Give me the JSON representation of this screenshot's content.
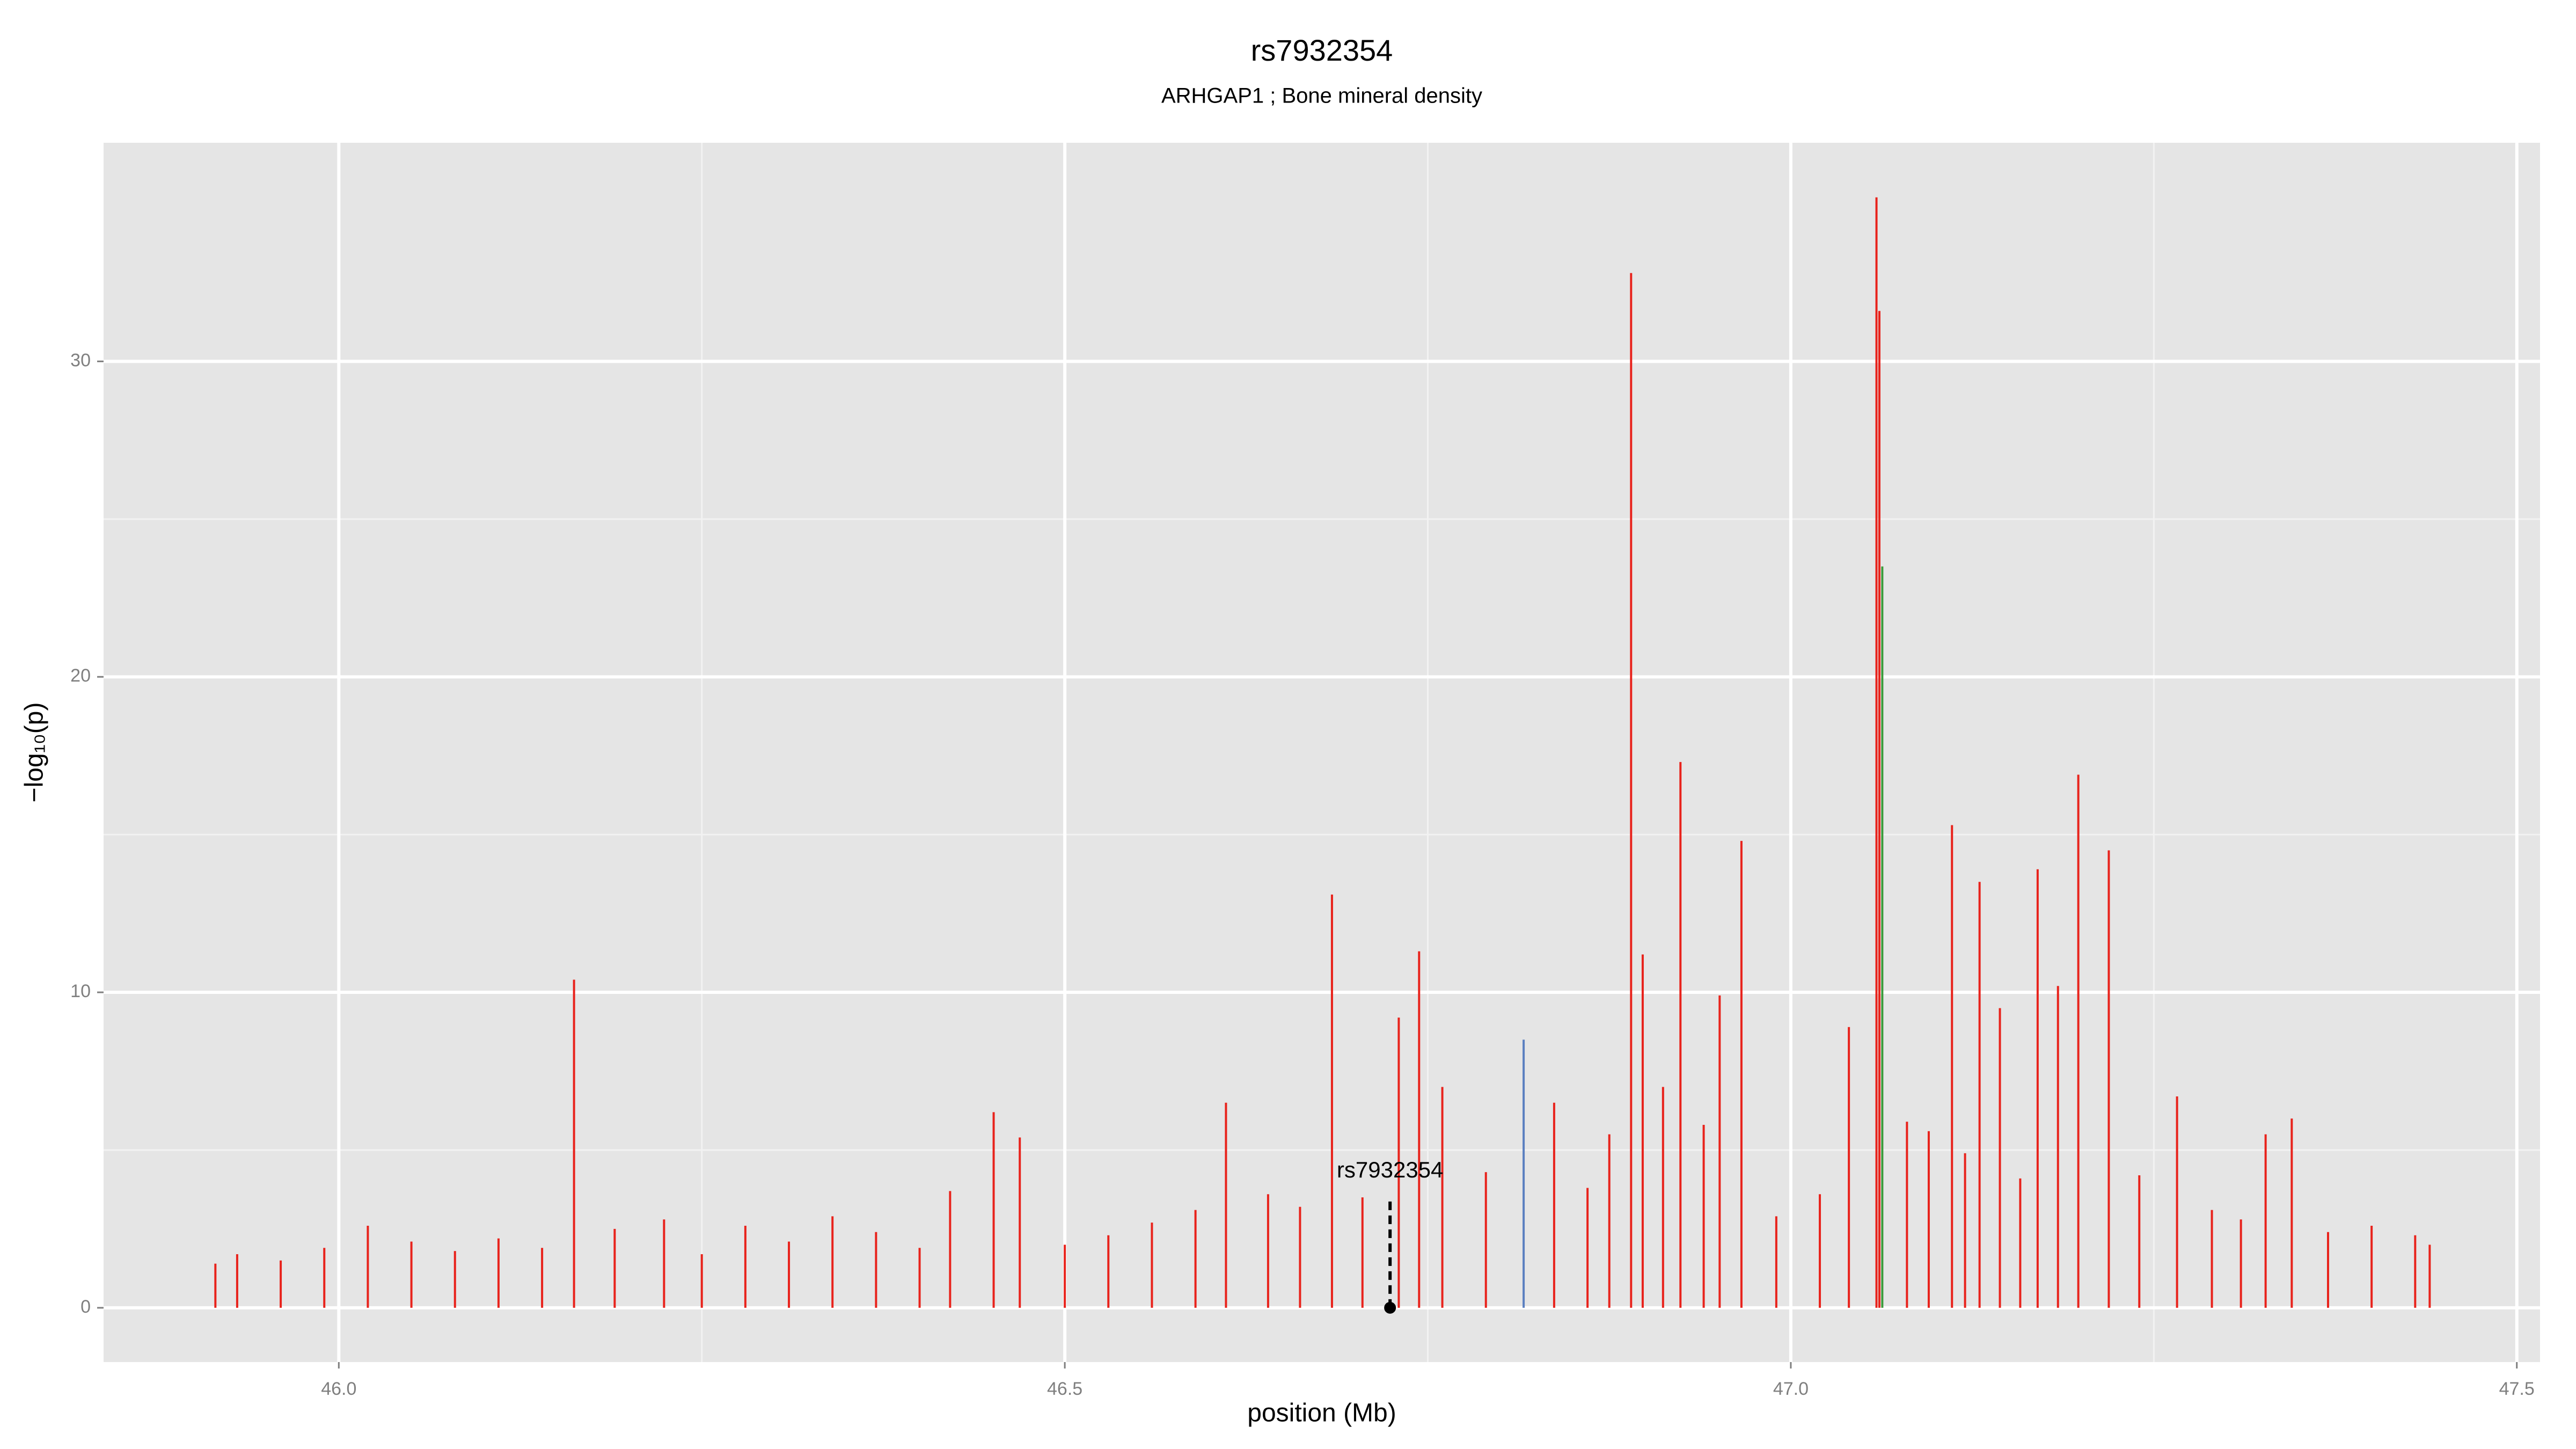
{
  "chart_data": {
    "type": "spike",
    "title": "rs7932354",
    "subtitle": "ARHGAP1 ; Bone mineral density",
    "x_label": "position (Mb)",
    "y_label": "−log₁₀(p)",
    "xlim": [
      45.838,
      47.516
    ],
    "ylim": [
      -1.72,
      36.93
    ],
    "xticks": [
      {
        "value": 46,
        "label": "46.0"
      },
      {
        "value": 46.5,
        "label": "46.5"
      },
      {
        "value": 47,
        "label": "47.0"
      },
      {
        "value": 47.5,
        "label": "47.5"
      }
    ],
    "yticks": [
      0,
      10,
      20,
      30
    ],
    "grid": true,
    "minor_grid": true,
    "series": [
      {
        "color": "#e8231c",
        "x": [
          45.915,
          45.93,
          45.96,
          45.99,
          46.02,
          46.05,
          46.08,
          46.11,
          46.14,
          46.162,
          46.19,
          46.224,
          46.25,
          46.28,
          46.31,
          46.34,
          46.37,
          46.4,
          46.421,
          46.451,
          46.469,
          46.5,
          46.53,
          46.56,
          46.59,
          46.611,
          46.64,
          46.662,
          46.684,
          46.705,
          46.73,
          46.744,
          46.76,
          46.79,
          46.837,
          46.86,
          46.875,
          46.89,
          46.898,
          46.912,
          46.924,
          46.94,
          46.951,
          46.966,
          46.99,
          47.02,
          47.04,
          47.059,
          47.061,
          47.08,
          47.095,
          47.111,
          47.12,
          47.13,
          47.144,
          47.158,
          47.17,
          47.184,
          47.198,
          47.219,
          47.24,
          47.266,
          47.29,
          47.31,
          47.327,
          47.345,
          47.37,
          47.4,
          47.43,
          47.44
        ],
        "values": [
          1.4,
          1.7,
          1.5,
          1.9,
          2.6,
          2.1,
          1.8,
          2.2,
          1.9,
          10.4,
          2.5,
          2.8,
          1.7,
          2.6,
          2.1,
          2.9,
          2.4,
          1.9,
          3.7,
          6.2,
          5.4,
          2.0,
          2.3,
          2.7,
          3.1,
          6.5,
          3.6,
          3.2,
          13.1,
          3.5,
          9.2,
          11.3,
          7.0,
          4.3,
          6.5,
          3.8,
          5.5,
          32.8,
          11.2,
          7.0,
          17.3,
          5.8,
          9.9,
          14.8,
          2.9,
          3.6,
          8.9,
          35.2,
          31.6,
          5.9,
          5.6,
          15.3,
          4.9,
          13.5,
          9.5,
          4.1,
          13.9,
          10.2,
          16.9,
          14.5,
          4.2,
          6.7,
          3.1,
          2.8,
          5.5,
          6.0,
          2.4,
          2.6,
          2.3,
          2.0
        ]
      },
      {
        "color": "#5b7fc0",
        "x": [
          46.816
        ],
        "values": [
          8.5
        ]
      },
      {
        "color": "#3a9a3a",
        "x": [
          47.063
        ],
        "values": [
          23.5
        ]
      }
    ],
    "annotation": {
      "text": "rs7932354",
      "x": 46.724,
      "y": 0,
      "y_end": 3.5
    }
  }
}
